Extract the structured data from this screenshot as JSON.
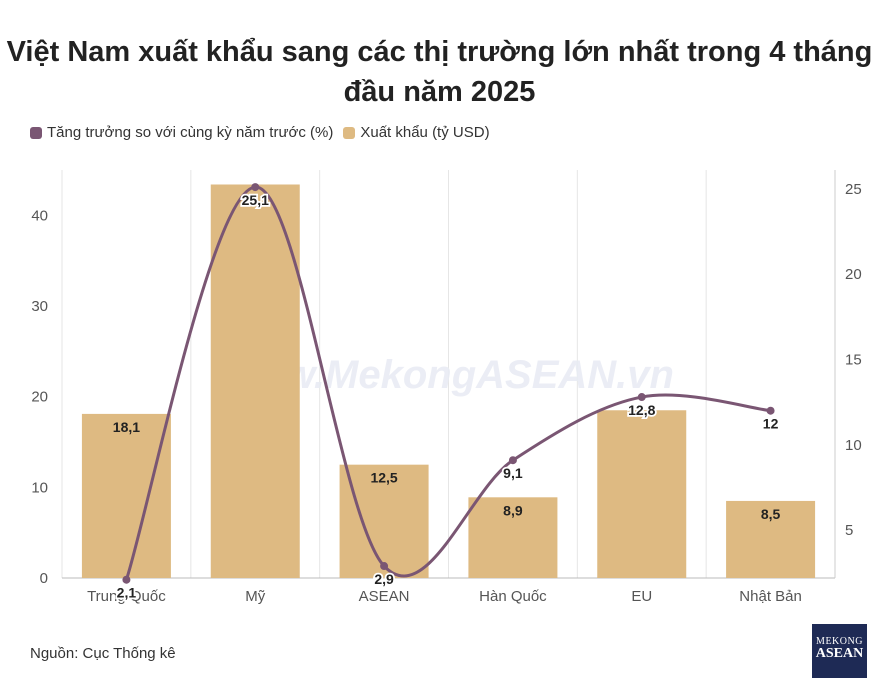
{
  "title": "Việt Nam xuất khẩu sang các thị trường lớn nhất trong 4 tháng đầu năm 2025",
  "source": "Nguồn: Cục Thống kê",
  "watermark": "www.MekongASEAN.vn",
  "logo": {
    "line1": "MEKONG",
    "line2": "ASEAN",
    "line3": "THÔNG TIN KINH TẾ VIỆT NAM - ASEAN"
  },
  "colors": {
    "bar": "#deba82",
    "line": "#7a5673",
    "grid": "#e6e6e6"
  },
  "chart_data": {
    "type": "bar",
    "categories": [
      "Trung Quốc",
      "Mỹ",
      "ASEAN",
      "Hàn Quốc",
      "EU",
      "Nhật Bản"
    ],
    "series": [
      {
        "name": "Xuất khẩu (tỷ USD)",
        "type": "bar",
        "axis": "left",
        "values": [
          18.1,
          43.4,
          12.5,
          8.9,
          18.5,
          8.5
        ],
        "labels": [
          "18,1",
          "",
          "12,5",
          "8,9",
          "",
          "8,5"
        ]
      },
      {
        "name": "Tăng trưởng so với cùng kỳ năm trước (%)",
        "type": "line",
        "axis": "right",
        "values": [
          2.1,
          25.1,
          2.9,
          9.1,
          12.8,
          12
        ],
        "labels": [
          "2,1",
          "25,1",
          "2,9",
          "9,1",
          "12,8",
          "12"
        ]
      }
    ],
    "y_left": {
      "min": 0,
      "max": 45,
      "ticks": [
        0,
        10,
        20,
        30,
        40
      ]
    },
    "y_right": {
      "min": 2.2,
      "max": 26.1,
      "ticks": [
        5,
        10,
        15,
        20,
        25
      ]
    },
    "grid": "vertical",
    "legend_position": "top-left"
  }
}
